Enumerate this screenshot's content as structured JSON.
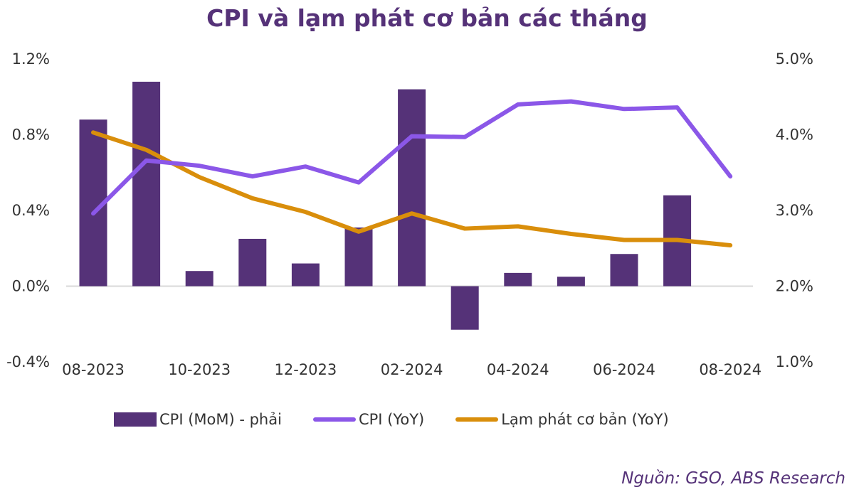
{
  "chart_data": {
    "type": "bar",
    "title": "CPI và lạm phát cơ bản các tháng",
    "categories": [
      "08-2023",
      "09-2023",
      "10-2023",
      "11-2023",
      "12-2023",
      "01-2024",
      "02-2024",
      "03-2024",
      "04-2024",
      "05-2024",
      "06-2024",
      "07-2024",
      "08-2024"
    ],
    "x_tick_labels": [
      "08-2023",
      "10-2023",
      "12-2023",
      "02-2024",
      "04-2024",
      "06-2024",
      "08-2024"
    ],
    "left_axis": {
      "ylim": [
        -0.4,
        1.2
      ],
      "ticks": [
        "1.2%",
        "0.8%",
        "0.4%",
        "0.0%",
        "-0.4%"
      ],
      "tick_values": [
        1.2,
        0.8,
        0.4,
        0.0,
        -0.4
      ]
    },
    "right_axis": {
      "ylim": [
        1.0,
        5.0
      ],
      "ticks": [
        "5.0%",
        "4.0%",
        "3.0%",
        "2.0%",
        "1.0%"
      ],
      "tick_values": [
        5.0,
        4.0,
        3.0,
        2.0,
        1.0
      ]
    },
    "series": [
      {
        "name": "CPI (MoM) - phải",
        "type": "bar",
        "axis": "left",
        "color": "#553278",
        "values": [
          0.88,
          1.08,
          0.08,
          0.25,
          0.12,
          0.31,
          1.04,
          -0.23,
          0.07,
          0.05,
          0.17,
          0.48,
          null
        ]
      },
      {
        "name": "CPI (YoY)",
        "type": "line",
        "axis": "right",
        "color": "#8B57E8",
        "values": [
          2.96,
          3.66,
          3.59,
          3.45,
          3.58,
          3.37,
          3.98,
          3.97,
          4.4,
          4.44,
          4.34,
          4.36,
          3.45
        ]
      },
      {
        "name": "Lạm phát cơ bản (YoY)",
        "type": "line",
        "axis": "right",
        "color": "#D98E0B",
        "values": [
          4.03,
          3.8,
          3.44,
          3.16,
          2.98,
          2.72,
          2.96,
          2.76,
          2.79,
          2.69,
          2.61,
          2.61,
          2.54
        ]
      }
    ],
    "legend": "bottom",
    "grid": false
  },
  "source": "Nguồn: GSO, ABS Research"
}
